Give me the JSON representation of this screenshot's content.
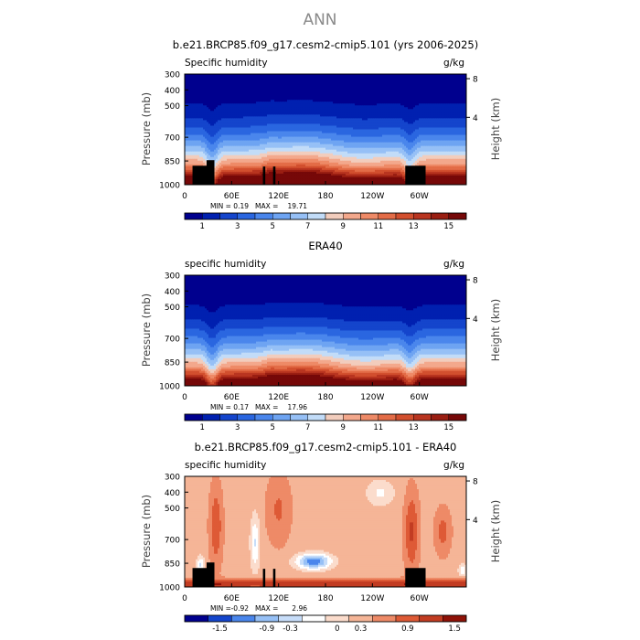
{
  "suptitle": "ANN",
  "chart_data": [
    {
      "type": "heatmap",
      "title": "b.e21.BRCP85.f09_g17.cesm2-cmip5.101 (yrs 2006-2025)",
      "left_label": "Specific humidity",
      "right_label": "g/kg",
      "ylabel": "Pressure (mb)",
      "y2label": "Height (km)",
      "x_ticks": [
        "0",
        "60E",
        "120E",
        "180",
        "120W",
        "60W"
      ],
      "y_ticks": [
        "300",
        "400",
        "500",
        "700",
        "850",
        "1000"
      ],
      "y2_ticks": [
        "8",
        "4"
      ],
      "stats": {
        "min_label": "MIN =",
        "min": "0.19",
        "max_label": "MAX =",
        "max": "19.71"
      },
      "colorbar_labels": [
        "1",
        "3",
        "5",
        "7",
        "9",
        "11",
        "13",
        "15"
      ],
      "range": [
        0,
        16
      ],
      "kind": "full"
    },
    {
      "type": "heatmap",
      "title": "ERA40",
      "left_label": "specific humidity",
      "right_label": "g/kg",
      "ylabel": "Pressure (mb)",
      "y2label": "Height (km)",
      "x_ticks": [
        "0",
        "60E",
        "120E",
        "180",
        "120W",
        "60W"
      ],
      "y_ticks": [
        "300",
        "400",
        "500",
        "700",
        "850",
        "1000"
      ],
      "y2_ticks": [
        "8",
        "4"
      ],
      "stats": {
        "min_label": "MIN =",
        "min": "0.17",
        "max_label": "MAX =",
        "max": "17.96"
      },
      "colorbar_labels": [
        "1",
        "3",
        "5",
        "7",
        "9",
        "11",
        "13",
        "15"
      ],
      "range": [
        0,
        16
      ],
      "kind": "full"
    },
    {
      "type": "heatmap",
      "title": "b.e21.BRCP85.f09_g17.cesm2-cmip5.101 - ERA40",
      "left_label": "specific humidity",
      "right_label": "g/kg",
      "ylabel": "Pressure (mb)",
      "y2label": "Height (km)",
      "x_ticks": [
        "0",
        "60E",
        "120E",
        "180",
        "120W",
        "60W"
      ],
      "y_ticks": [
        "300",
        "400",
        "500",
        "700",
        "850",
        "1000"
      ],
      "y2_ticks": [
        "8",
        "4"
      ],
      "stats": {
        "min_label": "MIN =",
        "min": "-0.92",
        "max_label": "MAX =",
        "max": "2.96"
      },
      "colorbar_labels": [
        "-1.5",
        "-0.9",
        "-0.3",
        "0",
        "0.3",
        "0.9",
        "1.5"
      ],
      "range": [
        -2,
        2
      ],
      "kind": "diff"
    }
  ],
  "colors": {
    "full_scale": [
      "#00008e",
      "#0020b0",
      "#1445cc",
      "#2a66e0",
      "#4a86ec",
      "#6ea4f2",
      "#96c0f6",
      "#c2dcf8",
      "#f2cdbd",
      "#f3a88c",
      "#ee8a67",
      "#e36c47",
      "#d24f2e",
      "#b93520",
      "#9a1e12",
      "#760808"
    ],
    "diff_scale": [
      "#00008e",
      "#1445cc",
      "#4a86ec",
      "#96c0f6",
      "#c7ddf9",
      "#ffffff",
      "#fbdccc",
      "#f5b597",
      "#ee8a67",
      "#de5a36",
      "#c23c22",
      "#8f1208"
    ],
    "mask": "#000000"
  }
}
